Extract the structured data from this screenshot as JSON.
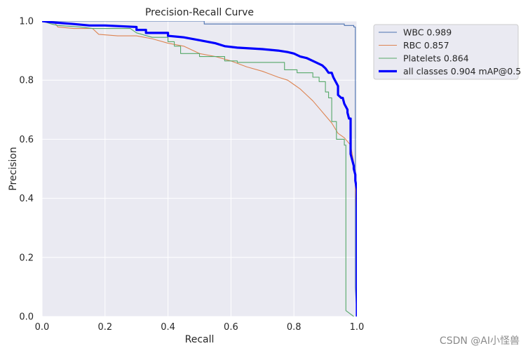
{
  "chart_data": {
    "type": "line",
    "title": "Precision-Recall Curve",
    "xlabel": "Recall",
    "ylabel": "Precision",
    "xlim": [
      0,
      1
    ],
    "ylim": [
      0,
      1
    ],
    "grid": true,
    "legend_position": "outside-top-right",
    "xticks": [
      "0.0",
      "0.2",
      "0.4",
      "0.6",
      "0.8",
      "1.0"
    ],
    "yticks": [
      "0.0",
      "0.2",
      "0.4",
      "0.6",
      "0.8",
      "1.0"
    ],
    "series": [
      {
        "name": "WBC 0.989",
        "color": "#4c72b0",
        "points": [
          [
            0,
            1.0
          ],
          [
            0.515,
            1.0
          ],
          [
            0.515,
            0.99
          ],
          [
            0.96,
            0.99
          ],
          [
            0.96,
            0.985
          ],
          [
            0.99,
            0.985
          ],
          [
            0.99,
            0.98
          ],
          [
            0.995,
            0.98
          ],
          [
            0.995,
            0.1
          ],
          [
            1.0,
            0.0
          ]
        ]
      },
      {
        "name": "RBC 0.857",
        "color": "#dd8452",
        "points": [
          [
            0,
            1.0
          ],
          [
            0.04,
            0.995
          ],
          [
            0.05,
            0.98
          ],
          [
            0.1,
            0.975
          ],
          [
            0.16,
            0.975
          ],
          [
            0.18,
            0.955
          ],
          [
            0.24,
            0.95
          ],
          [
            0.3,
            0.95
          ],
          [
            0.35,
            0.94
          ],
          [
            0.4,
            0.925
          ],
          [
            0.45,
            0.915
          ],
          [
            0.5,
            0.89
          ],
          [
            0.55,
            0.88
          ],
          [
            0.6,
            0.865
          ],
          [
            0.65,
            0.845
          ],
          [
            0.7,
            0.83
          ],
          [
            0.75,
            0.81
          ],
          [
            0.78,
            0.8
          ],
          [
            0.8,
            0.785
          ],
          [
            0.82,
            0.77
          ],
          [
            0.84,
            0.75
          ],
          [
            0.86,
            0.73
          ],
          [
            0.88,
            0.705
          ],
          [
            0.9,
            0.68
          ],
          [
            0.92,
            0.655
          ],
          [
            0.94,
            0.62
          ],
          [
            0.96,
            0.605
          ],
          [
            0.98,
            0.58
          ],
          [
            0.99,
            0.52
          ],
          [
            0.995,
            0.45
          ],
          [
            1.0,
            0.3
          ],
          [
            1.0,
            0.0
          ]
        ]
      },
      {
        "name": "Platelets 0.864",
        "color": "#55a868",
        "points": [
          [
            0,
            1.0
          ],
          [
            0.03,
            0.99
          ],
          [
            0.05,
            0.985
          ],
          [
            0.12,
            0.98
          ],
          [
            0.16,
            0.975
          ],
          [
            0.28,
            0.975
          ],
          [
            0.3,
            0.96
          ],
          [
            0.35,
            0.945
          ],
          [
            0.4,
            0.945
          ],
          [
            0.4,
            0.93
          ],
          [
            0.42,
            0.93
          ],
          [
            0.42,
            0.915
          ],
          [
            0.44,
            0.915
          ],
          [
            0.44,
            0.89
          ],
          [
            0.5,
            0.89
          ],
          [
            0.5,
            0.88
          ],
          [
            0.58,
            0.88
          ],
          [
            0.58,
            0.865
          ],
          [
            0.62,
            0.865
          ],
          [
            0.62,
            0.86
          ],
          [
            0.77,
            0.86
          ],
          [
            0.77,
            0.835
          ],
          [
            0.81,
            0.835
          ],
          [
            0.81,
            0.825
          ],
          [
            0.86,
            0.825
          ],
          [
            0.86,
            0.81
          ],
          [
            0.88,
            0.81
          ],
          [
            0.88,
            0.795
          ],
          [
            0.9,
            0.795
          ],
          [
            0.9,
            0.76
          ],
          [
            0.91,
            0.76
          ],
          [
            0.91,
            0.74
          ],
          [
            0.92,
            0.74
          ],
          [
            0.92,
            0.66
          ],
          [
            0.935,
            0.66
          ],
          [
            0.935,
            0.6
          ],
          [
            0.96,
            0.6
          ],
          [
            0.96,
            0.58
          ],
          [
            0.965,
            0.58
          ],
          [
            0.965,
            0.02
          ],
          [
            0.99,
            0.0
          ]
        ]
      },
      {
        "name": "all classes 0.904 mAP@0.5",
        "color": "#0000ff",
        "points": [
          [
            0,
            1.0
          ],
          [
            0.04,
            0.995
          ],
          [
            0.1,
            0.99
          ],
          [
            0.15,
            0.985
          ],
          [
            0.2,
            0.985
          ],
          [
            0.3,
            0.98
          ],
          [
            0.3,
            0.97
          ],
          [
            0.33,
            0.97
          ],
          [
            0.33,
            0.96
          ],
          [
            0.4,
            0.96
          ],
          [
            0.4,
            0.95
          ],
          [
            0.45,
            0.945
          ],
          [
            0.5,
            0.935
          ],
          [
            0.55,
            0.925
          ],
          [
            0.58,
            0.915
          ],
          [
            0.62,
            0.91
          ],
          [
            0.7,
            0.905
          ],
          [
            0.75,
            0.9
          ],
          [
            0.78,
            0.895
          ],
          [
            0.8,
            0.89
          ],
          [
            0.82,
            0.88
          ],
          [
            0.84,
            0.875
          ],
          [
            0.86,
            0.865
          ],
          [
            0.88,
            0.855
          ],
          [
            0.89,
            0.85
          ],
          [
            0.9,
            0.84
          ],
          [
            0.91,
            0.825
          ],
          [
            0.92,
            0.825
          ],
          [
            0.925,
            0.81
          ],
          [
            0.93,
            0.8
          ],
          [
            0.935,
            0.79
          ],
          [
            0.94,
            0.78
          ],
          [
            0.94,
            0.75
          ],
          [
            0.95,
            0.74
          ],
          [
            0.955,
            0.74
          ],
          [
            0.96,
            0.72
          ],
          [
            0.97,
            0.7
          ],
          [
            0.97,
            0.69
          ],
          [
            0.975,
            0.67
          ],
          [
            0.98,
            0.67
          ],
          [
            0.98,
            0.55
          ],
          [
            0.985,
            0.53
          ],
          [
            0.99,
            0.51
          ],
          [
            0.99,
            0.5
          ],
          [
            0.995,
            0.48
          ],
          [
            0.995,
            0.46
          ],
          [
            1.0,
            0.43
          ],
          [
            1.0,
            0.35
          ],
          [
            1.0,
            0.0
          ]
        ]
      }
    ]
  },
  "watermark": "CSDN @AI小怪兽"
}
